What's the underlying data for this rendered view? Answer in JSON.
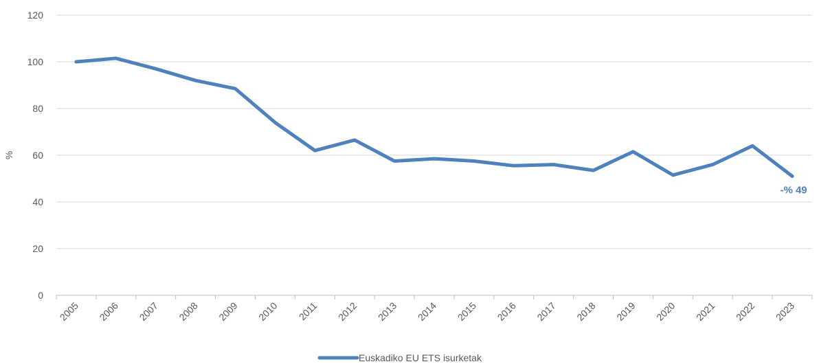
{
  "chart_data": {
    "type": "line",
    "categories": [
      "2005",
      "2006",
      "2007",
      "2008",
      "2009",
      "2010",
      "2011",
      "2012",
      "2013",
      "2014",
      "2015",
      "2016",
      "2017",
      "2018",
      "2019",
      "2020",
      "2021",
      "2022",
      "2023"
    ],
    "series": [
      {
        "name": "Euskadiko EU ETS isurketak",
        "color": "#4f81bd",
        "values": [
          100,
          101.5,
          97,
          92,
          88.5,
          74,
          62,
          66.5,
          57.5,
          58.5,
          57.5,
          55.5,
          56,
          53.5,
          61.5,
          51.5,
          56,
          64,
          51
        ]
      }
    ],
    "ylabel": "%",
    "xlabel": "",
    "ylim": [
      0,
      120
    ],
    "yticks": [
      0,
      20,
      40,
      60,
      80,
      100,
      120
    ],
    "grid": "horizontal",
    "legend": "bottom-center",
    "annotations": [
      {
        "category": "2023",
        "text": "-% 49"
      }
    ],
    "colors": {
      "line": "#4f81bd",
      "grid": "#d9d9d9",
      "axis": "#bfbfbf",
      "text": "#595959",
      "annotation": "#4f81bd"
    }
  }
}
